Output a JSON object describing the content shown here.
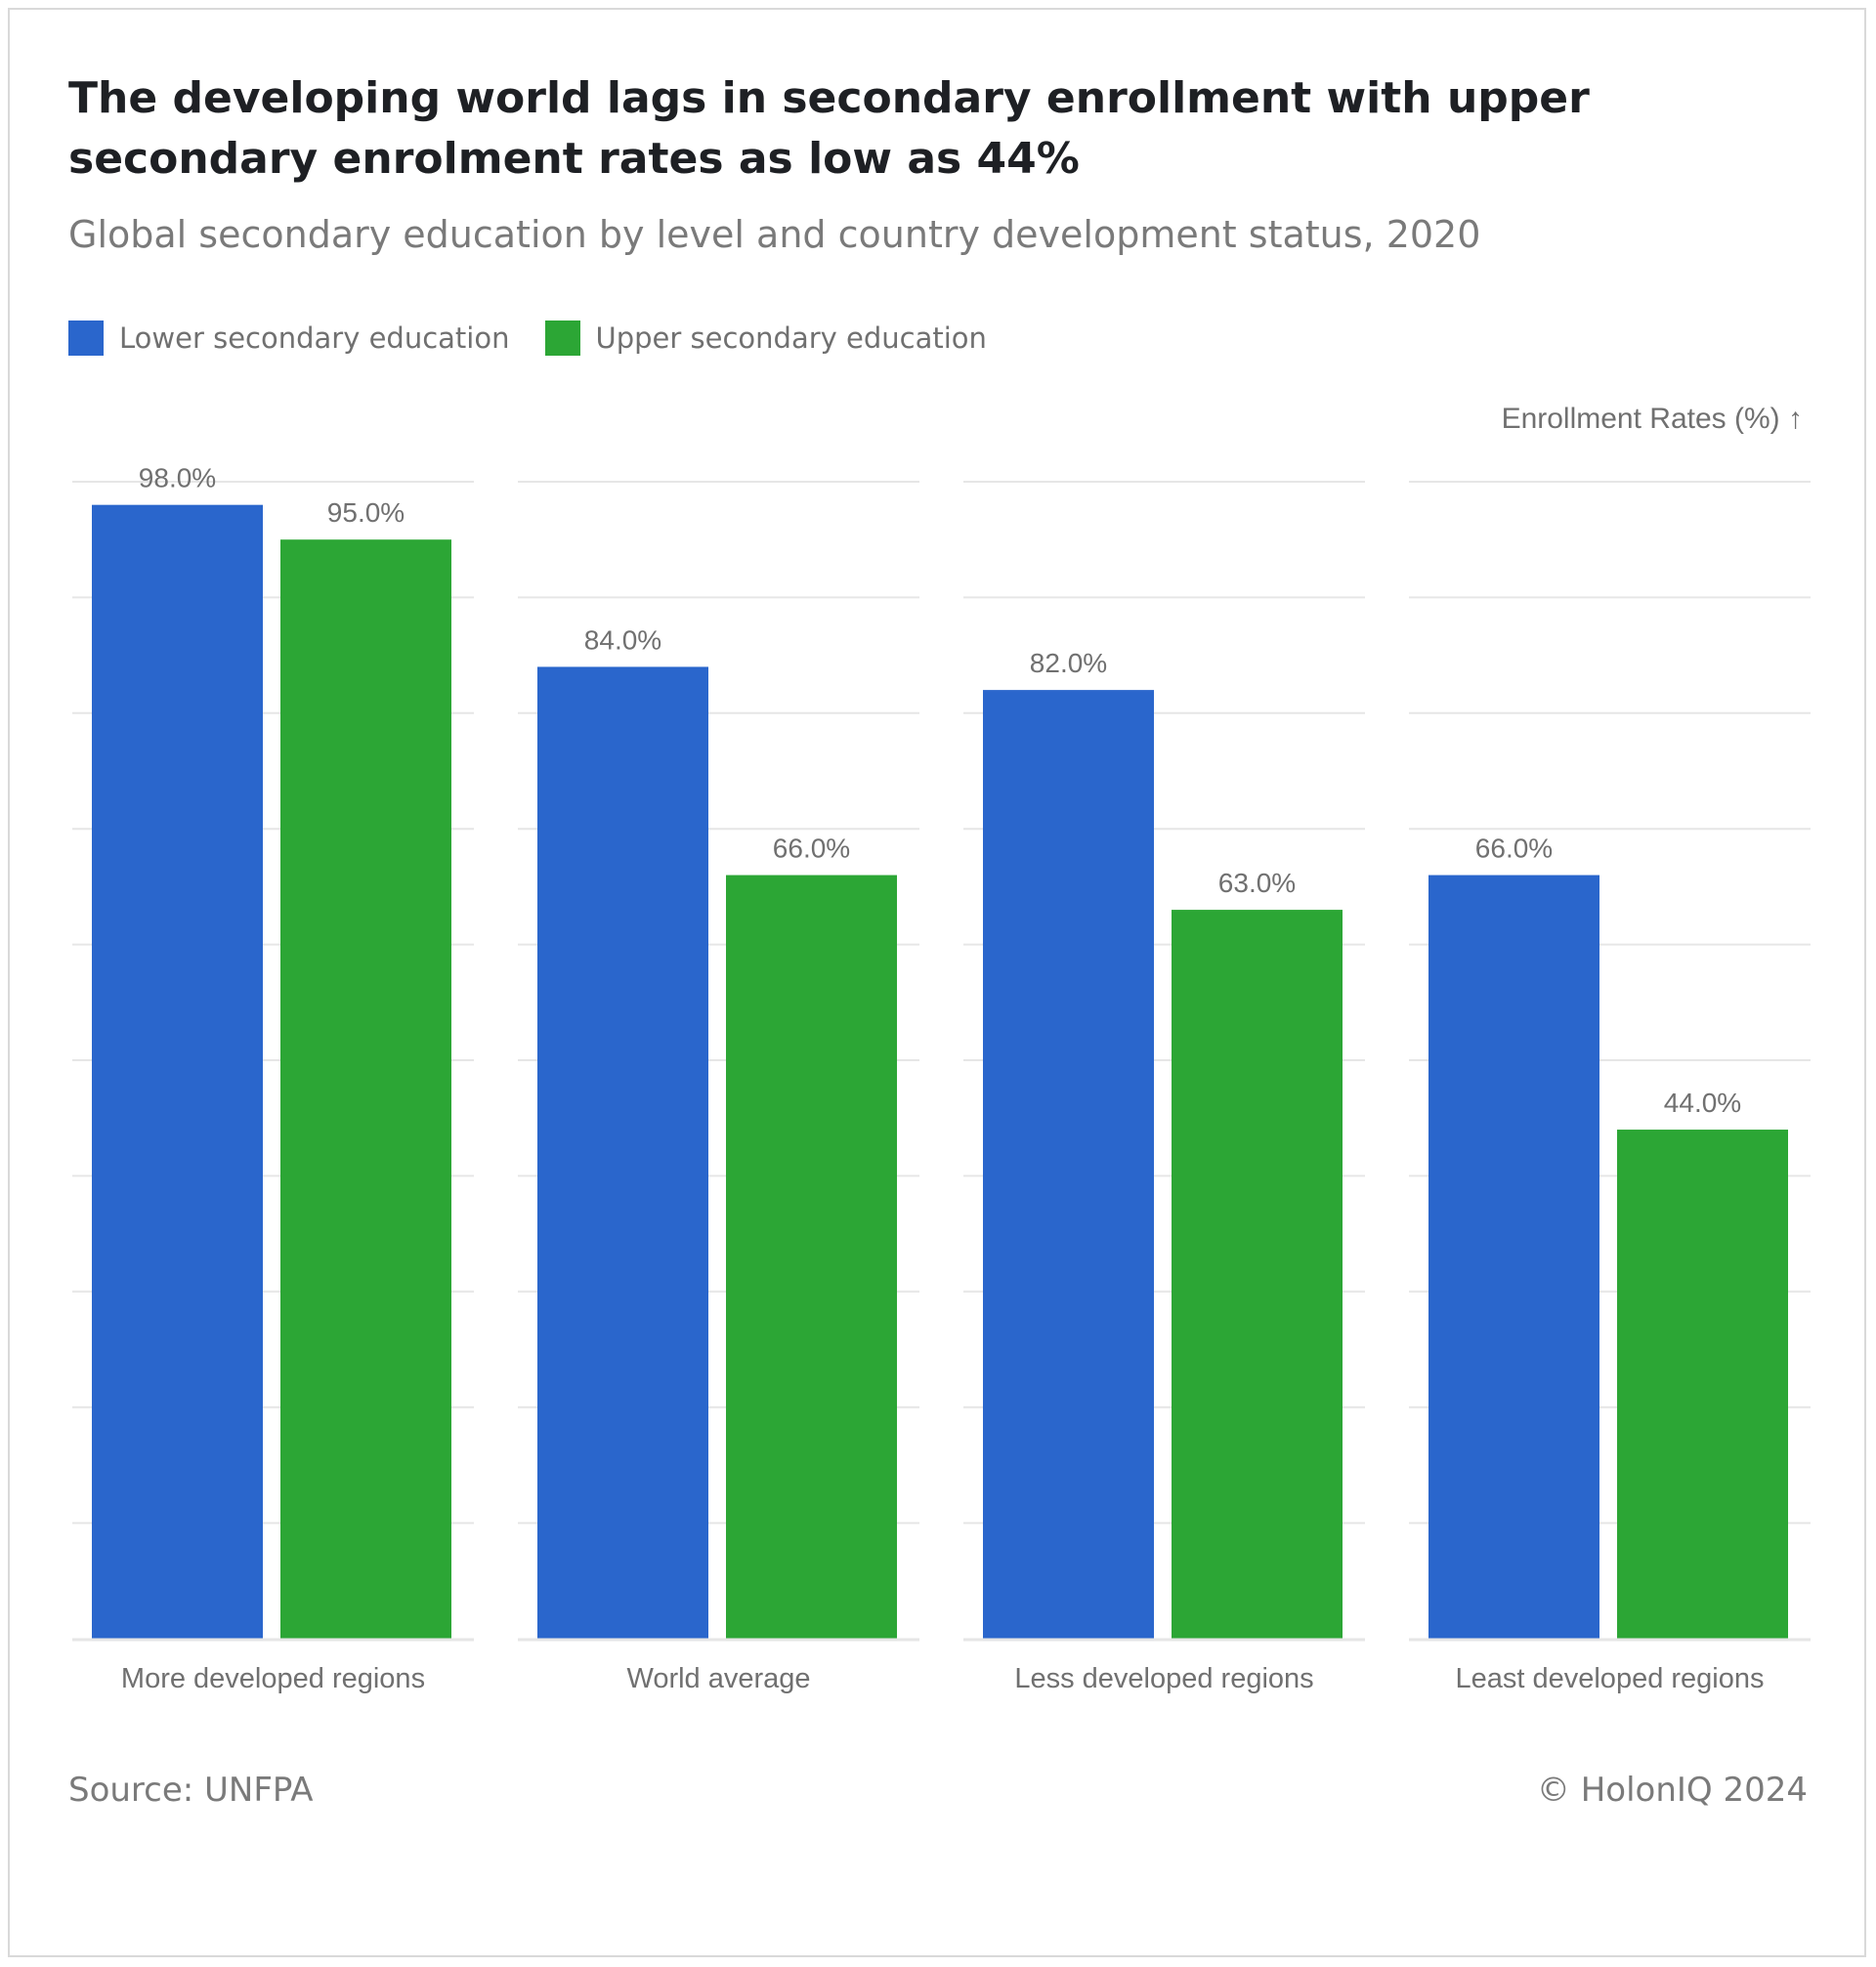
{
  "title": "The developing world lags in secondary enrollment with upper secondary enrolment rates as low as 44%",
  "subtitle": "Global secondary education by level and country development status, 2020",
  "legend": [
    {
      "label": "Lower secondary education",
      "color": "#2a66cc"
    },
    {
      "label": "Upper secondary education",
      "color": "#2ca635"
    }
  ],
  "y_axis_title": "Enrollment Rates (%) ↑",
  "source": "Source: UNFPA",
  "copyright": "© HolonIQ 2024",
  "chart_data": {
    "type": "bar",
    "title": "The developing world lags in secondary enrollment with upper secondary enrolment rates as low as 44%",
    "subtitle": "Global secondary education by level and country development status, 2020",
    "xlabel": "",
    "ylabel": "Enrollment Rates (%)",
    "categories": [
      "More developed regions",
      "World average",
      "Less developed regions",
      "Least developed regions"
    ],
    "series": [
      {
        "name": "Lower secondary education",
        "color": "#2a66cc",
        "values": [
          98.0,
          84.0,
          82.0,
          66.0
        ],
        "labels": [
          "98.0%",
          "84.0%",
          "82.0%",
          "66.0%"
        ]
      },
      {
        "name": "Upper secondary education",
        "color": "#2ca635",
        "values": [
          95.0,
          66.0,
          63.0,
          44.0
        ],
        "labels": [
          "95.0%",
          "66.0%",
          "63.0%",
          "44.0%"
        ]
      }
    ],
    "ylim": [
      0,
      100
    ],
    "grid": true,
    "legend_position": "top-left"
  }
}
